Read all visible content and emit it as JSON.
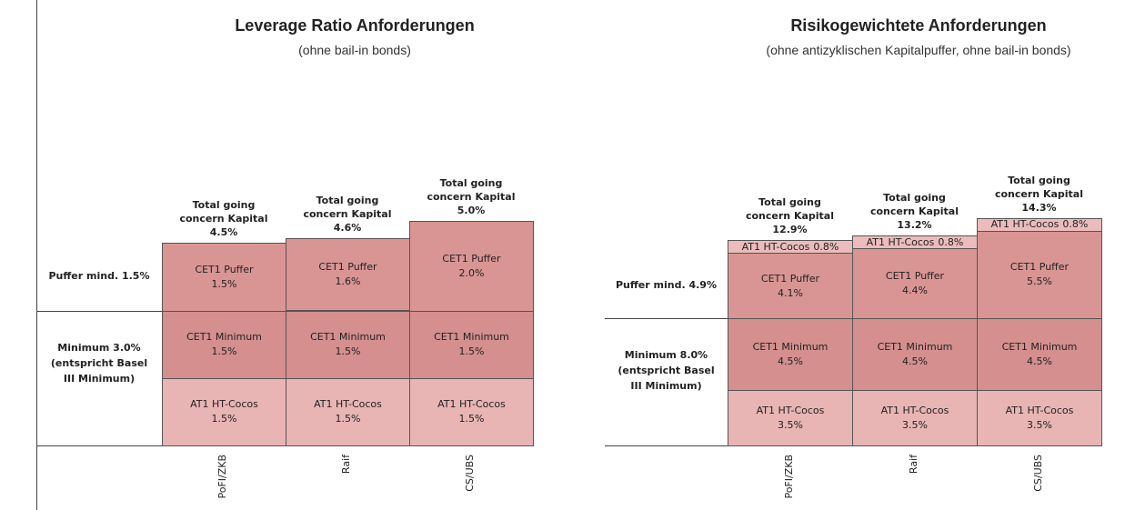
{
  "chart_data": [
    {
      "type": "bar",
      "stacked": true,
      "title": "Leverage Ratio Anforderungen",
      "subtitle": "(ohne bail-in bonds)",
      "categories": [
        "PoFI/ZKB",
        "Raif",
        "CS/UBS"
      ],
      "series": [
        {
          "name": "AT1 HT-Cocos",
          "color": "#e8b5b4",
          "values": [
            1.5,
            1.5,
            1.5
          ],
          "value_labels": [
            "1.5%",
            "1.5%",
            "1.5%"
          ]
        },
        {
          "name": "CET1 Minimum",
          "color": "#d48f8e",
          "values": [
            1.5,
            1.5,
            1.5
          ],
          "value_labels": [
            "1.5%",
            "1.5%",
            "1.5%"
          ]
        },
        {
          "name": "CET1 Puffer",
          "color": "#d99594",
          "values": [
            1.5,
            1.6,
            2.0
          ],
          "value_labels": [
            "1.5%",
            "1.6%",
            "2.0%"
          ]
        }
      ],
      "total_label": "Total going concern Kapital",
      "totals": [
        4.5,
        4.6,
        5.0
      ],
      "total_labels": [
        "4.5%",
        "4.6%",
        "5.0%"
      ],
      "annotations": [
        "Puffer mind. 1.5%",
        "Minimum 3.0% (entspricht Basel III Minimum)"
      ]
    },
    {
      "type": "bar",
      "stacked": true,
      "title": "Risikogewichtete Anforderungen",
      "subtitle": "(ohne antizyklischen Kapitalpuffer, ohne bail-in bonds)",
      "categories": [
        "PoFI/ZKB",
        "Raif",
        "CS/UBS"
      ],
      "series": [
        {
          "name": "AT1 HT-Cocos",
          "color": "#e8b5b4",
          "values": [
            3.5,
            3.5,
            3.5
          ],
          "value_labels": [
            "3.5%",
            "3.5%",
            "3.5%"
          ]
        },
        {
          "name": "CET1 Minimum",
          "color": "#d48f8e",
          "values": [
            4.5,
            4.5,
            4.5
          ],
          "value_labels": [
            "4.5%",
            "4.5%",
            "4.5%"
          ]
        },
        {
          "name": "CET1 Puffer",
          "color": "#d99594",
          "values": [
            4.1,
            4.4,
            5.5
          ],
          "value_labels": [
            "4.1%",
            "4.4%",
            "5.5%"
          ]
        },
        {
          "name": "AT1 HT-Cocos",
          "color": "#ebbcbb",
          "values": [
            0.8,
            0.8,
            0.8
          ],
          "value_labels": [
            "0.8%",
            "0.8%",
            "0.8%"
          ]
        }
      ],
      "total_label": "Total going concern Kapital",
      "totals": [
        12.9,
        13.2,
        14.3
      ],
      "total_labels": [
        "12.9%",
        "13.2%",
        "14.3%"
      ],
      "annotations": [
        "Puffer mind. 4.9%",
        "Minimum 8.0% (entspricht Basel III Minimum)"
      ]
    }
  ]
}
